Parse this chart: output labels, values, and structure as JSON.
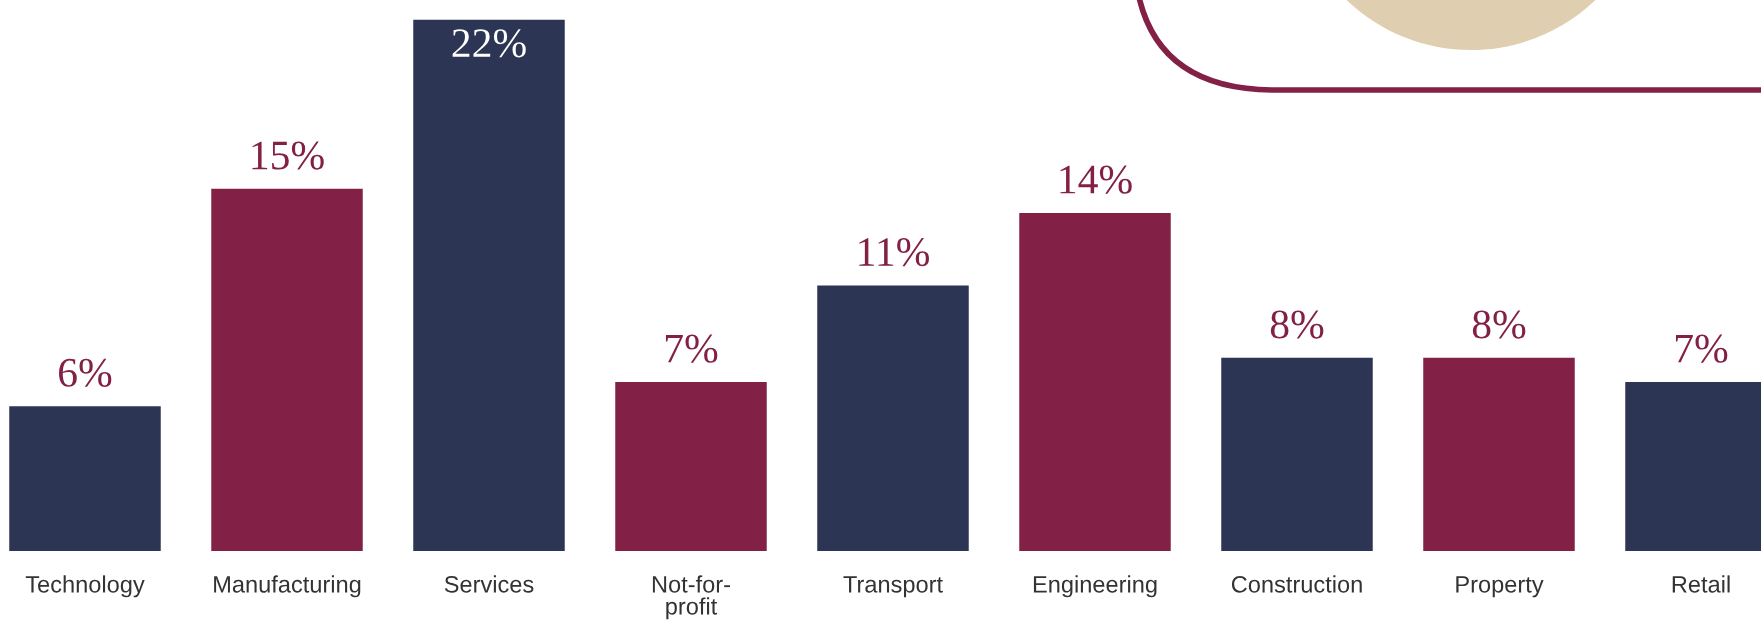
{
  "chart_data": {
    "type": "bar",
    "categories": [
      "Technology",
      "Manufacturing",
      "Services",
      "Not-for-profit",
      "Transport",
      "Engineering",
      "Construction",
      "Property",
      "Retail"
    ],
    "values": [
      6,
      15,
      22,
      7,
      11,
      14,
      8,
      8,
      7
    ],
    "value_labels": [
      "6%",
      "15%",
      "22%",
      "7%",
      "11%",
      "14%",
      "8%",
      "8%",
      "7%"
    ],
    "colors": [
      "#2d3554",
      "#822145",
      "#2d3554",
      "#822145",
      "#2d3554",
      "#822145",
      "#2d3554",
      "#822145",
      "#2d3554"
    ]
  }
}
